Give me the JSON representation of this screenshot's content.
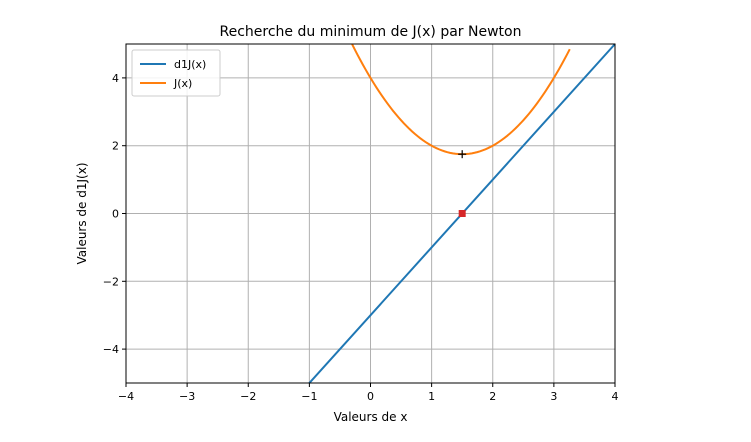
{
  "chart_data": {
    "type": "line",
    "title": "Recherche du minimum de J(x) par Newton",
    "xlabel": "Valeurs de x",
    "ylabel": "Valeurs de d1J(x)",
    "xlim": [
      -4,
      4
    ],
    "ylim": [
      -5,
      5
    ],
    "xticks": [
      -4,
      -3,
      -2,
      -1,
      0,
      1,
      2,
      3,
      4
    ],
    "yticks": [
      -4,
      -2,
      0,
      2,
      4
    ],
    "grid": true,
    "legend_position": "top-left",
    "series": [
      {
        "name": "d1J(x)",
        "kind": "line",
        "color": "#1f77b4",
        "x": [
          -1,
          4
        ],
        "y": [
          -5,
          5
        ]
      },
      {
        "name": "J(x)",
        "kind": "curve",
        "color": "#ff7f0e",
        "x": [
          -0.3,
          0,
          0.5,
          1,
          1.5,
          2,
          2.5,
          3,
          3.26
        ],
        "y": [
          4.99,
          4,
          2.5,
          2,
          1.75,
          2,
          2.5,
          4,
          4.99
        ]
      }
    ],
    "markers": [
      {
        "kind": "plus",
        "x": 1.5,
        "y": 1.75,
        "color": "#000000"
      },
      {
        "kind": "square",
        "x": 1.5,
        "y": 0,
        "color": "#d62728"
      }
    ]
  }
}
